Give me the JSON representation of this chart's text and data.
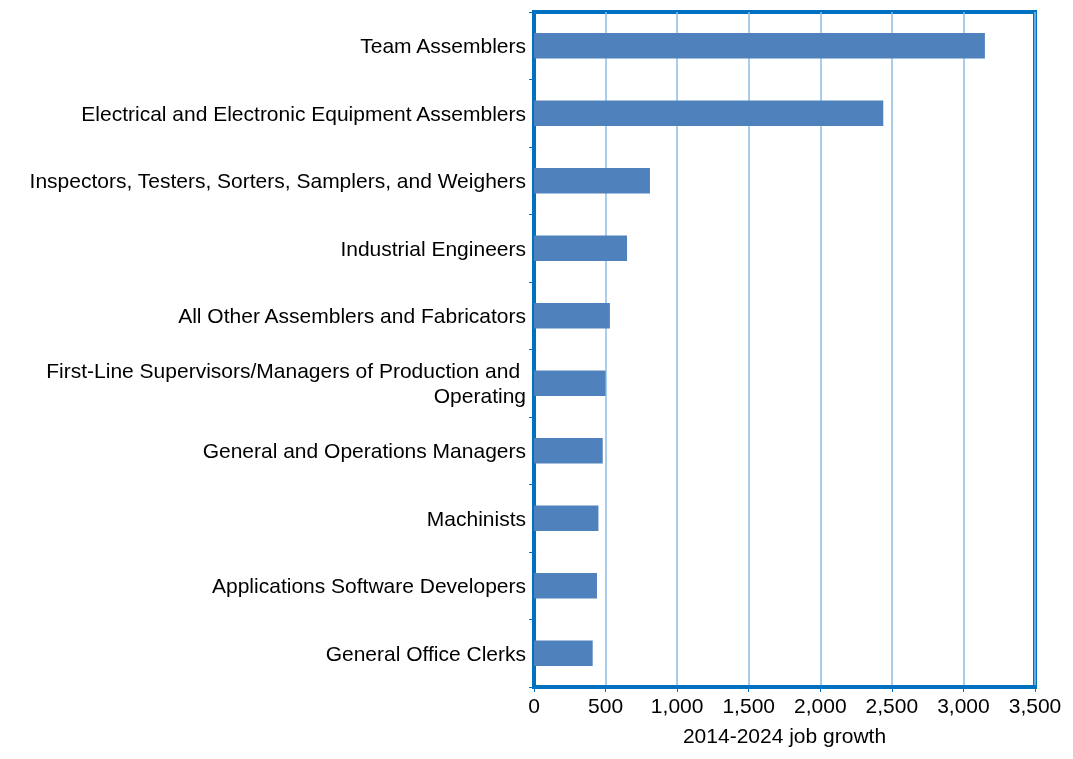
{
  "chart_data": {
    "type": "bar",
    "orientation": "horizontal",
    "xlabel": "2014-2024 job growth",
    "categories": [
      "Team Assemblers",
      "Electrical and Electronic Equipment Assemblers",
      "Inspectors, Testers, Sorters, Samplers, and Weighers",
      "Industrial Engineers",
      "All Other Assemblers and Fabricators",
      "First-Line Supervisors/Managers of Production and Operating",
      "General and Operations Managers",
      "Machinists",
      "Applications Software Developers",
      "General Office Clerks"
    ],
    "values": [
      3150,
      2440,
      810,
      650,
      530,
      500,
      480,
      450,
      440,
      410
    ],
    "color": "#4f81bd",
    "xlim": [
      0,
      3500
    ],
    "xticks": [
      {
        "value": 0,
        "label": "0"
      },
      {
        "value": 500,
        "label": "500"
      },
      {
        "value": 1000,
        "label": "1,000"
      },
      {
        "value": 1500,
        "label": "1,500"
      },
      {
        "value": 2000,
        "label": "2,000"
      },
      {
        "value": 2500,
        "label": "2,500"
      },
      {
        "value": 3000,
        "label": "3,000"
      },
      {
        "value": 3500,
        "label": "3,500"
      }
    ],
    "grid": "x"
  }
}
